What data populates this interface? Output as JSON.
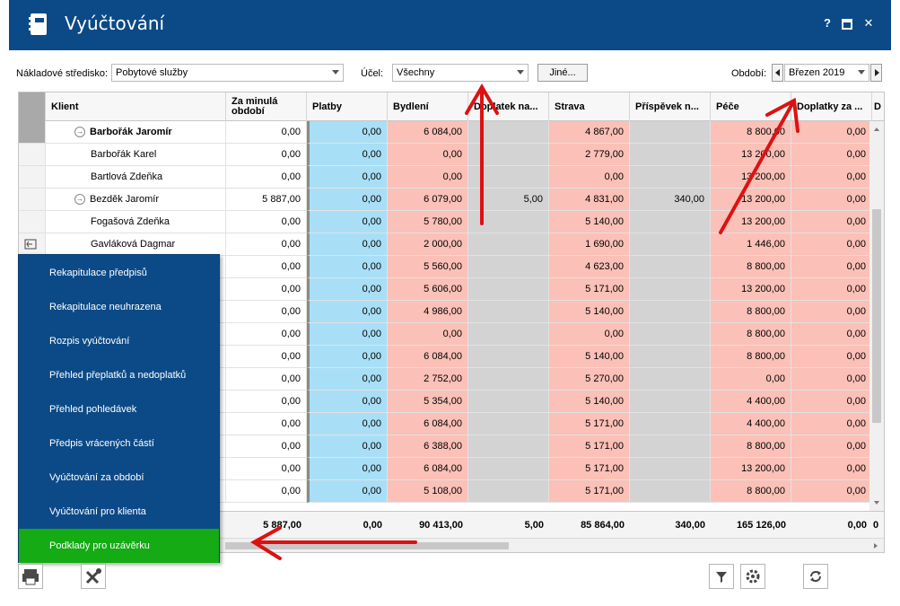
{
  "window": {
    "title": "Vyúčtování",
    "help": "?",
    "maximize": "▣",
    "close": "✕"
  },
  "filters": {
    "cost_center_label": "Nákladové středisko:",
    "cost_center_value": "Pobytové služby",
    "purpose_label": "Účel:",
    "purpose_value": "Všechny",
    "other_button": "Jiné...",
    "period_label": "Období:",
    "period_value": "Březen 2019"
  },
  "grid": {
    "columns": [
      "Klient",
      "Za minulá období",
      "Platby",
      "Bydlení",
      "Doplatek na...",
      "Strava",
      "Příspěvek n...",
      "Péče",
      "Doplatky za ...",
      "D"
    ],
    "rows": [
      {
        "name": "Barbořák Jaromír",
        "bold": true,
        "expand": true,
        "vals": [
          "0,00",
          "0,00",
          "6 084,00",
          "",
          "4 867,00",
          "",
          "8 800,00",
          "0,00"
        ]
      },
      {
        "name": "Barbořák Karel",
        "vals": [
          "0,00",
          "0,00",
          "0,00",
          "",
          "2 779,00",
          "",
          "13 200,00",
          "0,00"
        ]
      },
      {
        "name": "Bartlová Zdeňka",
        "vals": [
          "0,00",
          "0,00",
          "0,00",
          "",
          "0,00",
          "",
          "13 200,00",
          "0,00"
        ]
      },
      {
        "name": "Bezděk Jaromír",
        "expand": true,
        "vals": [
          "5 887,00",
          "0,00",
          "6 079,00",
          "5,00",
          "4 831,00",
          "340,00",
          "13 200,00",
          "0,00"
        ]
      },
      {
        "name": "Fogašová Zdeňka",
        "vals": [
          "0,00",
          "0,00",
          "5 780,00",
          "",
          "5 140,00",
          "",
          "13 200,00",
          "0,00"
        ]
      },
      {
        "name": "Gavláková Dagmar",
        "vals": [
          "0,00",
          "0,00",
          "2 000,00",
          "",
          "1 690,00",
          "",
          "1 446,00",
          "0,00"
        ]
      },
      {
        "name": "",
        "vals": [
          "0,00",
          "0,00",
          "5 560,00",
          "",
          "4 623,00",
          "",
          "8 800,00",
          "0,00"
        ]
      },
      {
        "name": "",
        "vals": [
          "0,00",
          "0,00",
          "5 606,00",
          "",
          "5 171,00",
          "",
          "13 200,00",
          "0,00"
        ]
      },
      {
        "name": "",
        "vals": [
          "0,00",
          "0,00",
          "4 986,00",
          "",
          "5 140,00",
          "",
          "8 800,00",
          "0,00"
        ]
      },
      {
        "name": "",
        "vals": [
          "0,00",
          "0,00",
          "0,00",
          "",
          "0,00",
          "",
          "8 800,00",
          "0,00"
        ]
      },
      {
        "name": "",
        "vals": [
          "0,00",
          "0,00",
          "6 084,00",
          "",
          "5 140,00",
          "",
          "8 800,00",
          "0,00"
        ]
      },
      {
        "name": "",
        "vals": [
          "0,00",
          "0,00",
          "2 752,00",
          "",
          "5 270,00",
          "",
          "0,00",
          "0,00"
        ]
      },
      {
        "name": "",
        "vals": [
          "0,00",
          "0,00",
          "5 354,00",
          "",
          "5 140,00",
          "",
          "4 400,00",
          "0,00"
        ]
      },
      {
        "name": "",
        "vals": [
          "0,00",
          "0,00",
          "6 084,00",
          "",
          "5 171,00",
          "",
          "4 400,00",
          "0,00"
        ]
      },
      {
        "name": "",
        "vals": [
          "0,00",
          "0,00",
          "6 388,00",
          "",
          "5 171,00",
          "",
          "8 800,00",
          "0,00"
        ]
      },
      {
        "name": "",
        "vals": [
          "0,00",
          "0,00",
          "6 084,00",
          "",
          "5 171,00",
          "",
          "13 200,00",
          "0,00"
        ]
      },
      {
        "name": "",
        "vals": [
          "0,00",
          "0,00",
          "5 108,00",
          "",
          "5 171,00",
          "",
          "8 800,00",
          "0,00"
        ]
      }
    ],
    "totals": [
      "5 887,00",
      "0,00",
      "90 413,00",
      "5,00",
      "85 864,00",
      "340,00",
      "165 126,00",
      "0,00"
    ],
    "totals_last": "0"
  },
  "menu": {
    "items": [
      "Rekapitulace předpisů",
      "Rekapitulace neuhrazena",
      "Rozpis vyúčtování",
      "Přehled přeplatků a nedoplatků",
      "Přehled pohledávek",
      "Předpis vrácených částí",
      "Vyúčtování za období",
      "Vyúčtování pro klienta",
      "Podklady pro uzávěrku"
    ]
  },
  "colors": {
    "titlebar": "#0b4a87",
    "menu_bg": "#0c4a87",
    "menu_active": "#14ab14",
    "platby": "#a8dff7",
    "pink": "#fbc0b7",
    "gray": "#d3d3d3",
    "annotation": "#dd1111"
  }
}
